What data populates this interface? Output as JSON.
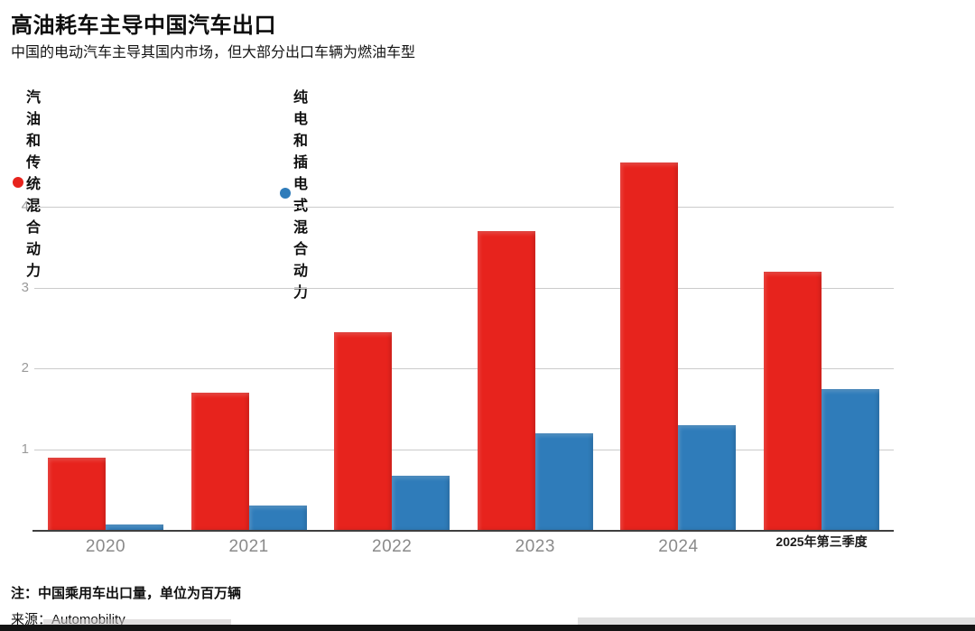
{
  "header": {
    "title": "高油耗车主导中国汽车出口",
    "subtitle": "中国的电动汽车主导其国内市场，但大部分出口车辆为燃油车型"
  },
  "legend": {
    "items": [
      {
        "label": "汽油和传统混合动力",
        "color": "#e7231d"
      },
      {
        "label": "纯电和插电式混合动力",
        "color": "#2f7cba"
      }
    ]
  },
  "footer": {
    "note": "注：中国乘用车出口量，单位为百万辆",
    "source": "来源：Automobility"
  },
  "chart_data": {
    "type": "bar",
    "title": "高油耗车主导中国汽车出口",
    "subtitle": "中国的电动汽车主导其国内市场，但大部分出口车辆为燃油车型",
    "categories": [
      "2020",
      "2021",
      "2022",
      "2023",
      "2024",
      "2025年第三季度"
    ],
    "series": [
      {
        "name": "汽油和传统混合动力",
        "color": "#e7231d",
        "values": [
          0.9,
          1.7,
          2.45,
          3.7,
          4.55,
          3.2
        ]
      },
      {
        "name": "纯电和插电式混合动力",
        "color": "#2f7cba",
        "values": [
          0.07,
          0.3,
          0.67,
          1.2,
          1.3,
          1.75
        ]
      }
    ],
    "ylabel": "",
    "xlabel": "",
    "unit_note": "单位为百万辆",
    "yticks": [
      1,
      2,
      3,
      4
    ],
    "ylim": [
      0,
      4.9
    ],
    "grid": true,
    "legend_position": "top-left"
  }
}
